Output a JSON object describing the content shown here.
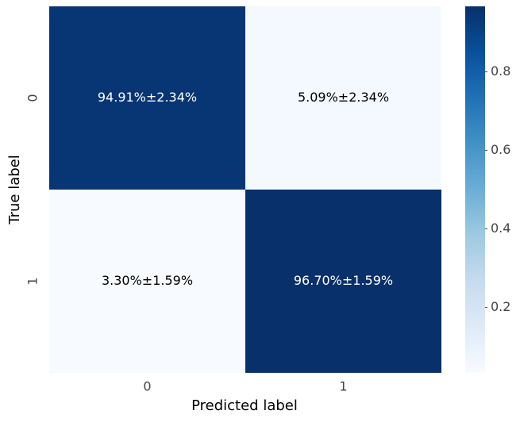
{
  "chart_data": {
    "type": "heatmap",
    "xlabel": "Predicted label",
    "ylabel": "True label",
    "x_categories": [
      "0",
      "1"
    ],
    "y_categories": [
      "0",
      "1"
    ],
    "values": [
      [
        0.9491,
        0.0509
      ],
      [
        0.033,
        0.967
      ]
    ],
    "errors": [
      [
        0.0234,
        0.0234
      ],
      [
        0.0159,
        0.0159
      ]
    ],
    "value_labels": [
      [
        "94.91%±2.34%",
        "5.09%±2.34%"
      ],
      [
        "3.30%±1.59%",
        "96.70%±1.59%"
      ]
    ],
    "colormap": "Blues",
    "clim": [
      0.033,
      0.967
    ],
    "cticks": [
      0.2,
      0.4,
      0.6,
      0.8
    ]
  }
}
